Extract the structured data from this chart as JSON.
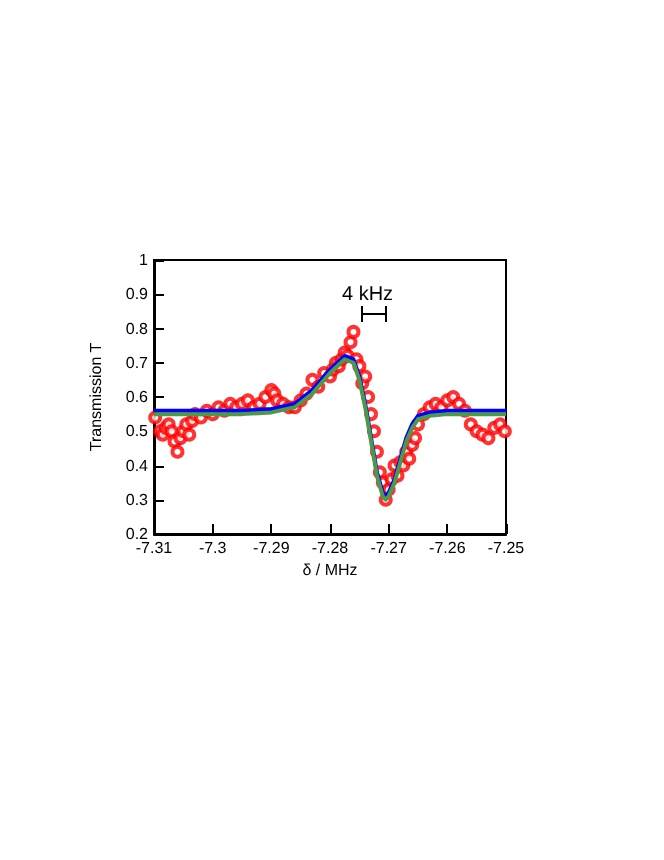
{
  "chart_data": {
    "type": "scatter",
    "xlabel": "δ / MHz",
    "ylabel": "Transmission T",
    "annotations": [
      "4 kHz"
    ],
    "xlim": [
      -7.31,
      -7.25
    ],
    "xticks": [
      -7.31,
      -7.3,
      -7.29,
      -7.28,
      -7.27,
      -7.26,
      -7.25
    ],
    "ylim": [
      0.2,
      1
    ],
    "yticks": [
      0.2,
      0.3,
      0.4,
      0.5,
      0.6,
      0.7,
      0.8,
      0.9,
      1
    ],
    "grid": false,
    "series": [
      {
        "marker": "circle",
        "color": "#ff0000",
        "x": [
          -7.3098,
          -7.309,
          -7.3085,
          -7.308,
          -7.3075,
          -7.307,
          -7.3065,
          -7.306,
          -7.3055,
          -7.305,
          -7.3045,
          -7.304,
          -7.3035,
          -7.303,
          -7.302,
          -7.301,
          -7.3,
          -7.299,
          -7.298,
          -7.297,
          -7.296,
          -7.295,
          -7.294,
          -7.293,
          -7.292,
          -7.291,
          -7.29,
          -7.2895,
          -7.289,
          -7.288,
          -7.287,
          -7.286,
          -7.285,
          -7.284,
          -7.283,
          -7.282,
          -7.281,
          -7.28,
          -7.2795,
          -7.279,
          -7.2785,
          -7.278,
          -7.2775,
          -7.277,
          -7.2765,
          -7.276,
          -7.2755,
          -7.275,
          -7.2745,
          -7.274,
          -7.2735,
          -7.273,
          -7.2725,
          -7.272,
          -7.2715,
          -7.271,
          -7.2705,
          -7.27,
          -7.2695,
          -7.269,
          -7.2685,
          -7.268,
          -7.2675,
          -7.267,
          -7.2665,
          -7.266,
          -7.2655,
          -7.265,
          -7.264,
          -7.263,
          -7.262,
          -7.261,
          -7.26,
          -7.259,
          -7.258,
          -7.257,
          -7.256,
          -7.255,
          -7.254,
          -7.253,
          -7.252,
          -7.251,
          -7.2502
        ],
        "values": [
          0.54,
          0.5,
          0.49,
          0.51,
          0.52,
          0.5,
          0.47,
          0.44,
          0.48,
          0.5,
          0.52,
          0.49,
          0.53,
          0.55,
          0.54,
          0.56,
          0.55,
          0.57,
          0.56,
          0.58,
          0.57,
          0.58,
          0.59,
          0.57,
          0.58,
          0.6,
          0.62,
          0.61,
          0.59,
          0.58,
          0.57,
          0.57,
          0.59,
          0.61,
          0.65,
          0.63,
          0.67,
          0.66,
          0.68,
          0.7,
          0.69,
          0.71,
          0.73,
          0.72,
          0.76,
          0.79,
          0.71,
          0.69,
          0.64,
          0.66,
          0.6,
          0.55,
          0.5,
          0.44,
          0.38,
          0.35,
          0.3,
          0.33,
          0.36,
          0.4,
          0.37,
          0.41,
          0.4,
          0.44,
          0.42,
          0.46,
          0.48,
          0.52,
          0.55,
          0.57,
          0.58,
          0.57,
          0.59,
          0.6,
          0.58,
          0.56,
          0.52,
          0.5,
          0.49,
          0.48,
          0.51,
          0.52,
          0.5
        ]
      },
      {
        "type": "line",
        "marker": "none",
        "color": "#0000ff",
        "x": [
          -7.31,
          -7.295,
          -7.29,
          -7.286,
          -7.283,
          -7.28,
          -7.2775,
          -7.276,
          -7.275,
          -7.274,
          -7.273,
          -7.272,
          -7.271,
          -7.2705,
          -7.27,
          -7.269,
          -7.268,
          -7.267,
          -7.266,
          -7.265,
          -7.263,
          -7.26,
          -7.25
        ],
        "values": [
          0.56,
          0.56,
          0.565,
          0.58,
          0.62,
          0.68,
          0.72,
          0.71,
          0.66,
          0.58,
          0.48,
          0.38,
          0.32,
          0.31,
          0.32,
          0.36,
          0.42,
          0.48,
          0.52,
          0.545,
          0.555,
          0.56,
          0.56
        ]
      },
      {
        "type": "line",
        "marker": "none",
        "color": "#4a9a4a",
        "x": [
          -7.31,
          -7.295,
          -7.29,
          -7.286,
          -7.283,
          -7.28,
          -7.2775,
          -7.276,
          -7.275,
          -7.274,
          -7.273,
          -7.272,
          -7.271,
          -7.2705,
          -7.27,
          -7.269,
          -7.268,
          -7.267,
          -7.266,
          -7.265,
          -7.263,
          -7.26,
          -7.25
        ],
        "values": [
          0.55,
          0.55,
          0.555,
          0.57,
          0.61,
          0.67,
          0.71,
          0.7,
          0.65,
          0.57,
          0.47,
          0.37,
          0.31,
          0.3,
          0.31,
          0.35,
          0.41,
          0.47,
          0.51,
          0.535,
          0.545,
          0.55,
          0.55
        ]
      }
    ]
  }
}
